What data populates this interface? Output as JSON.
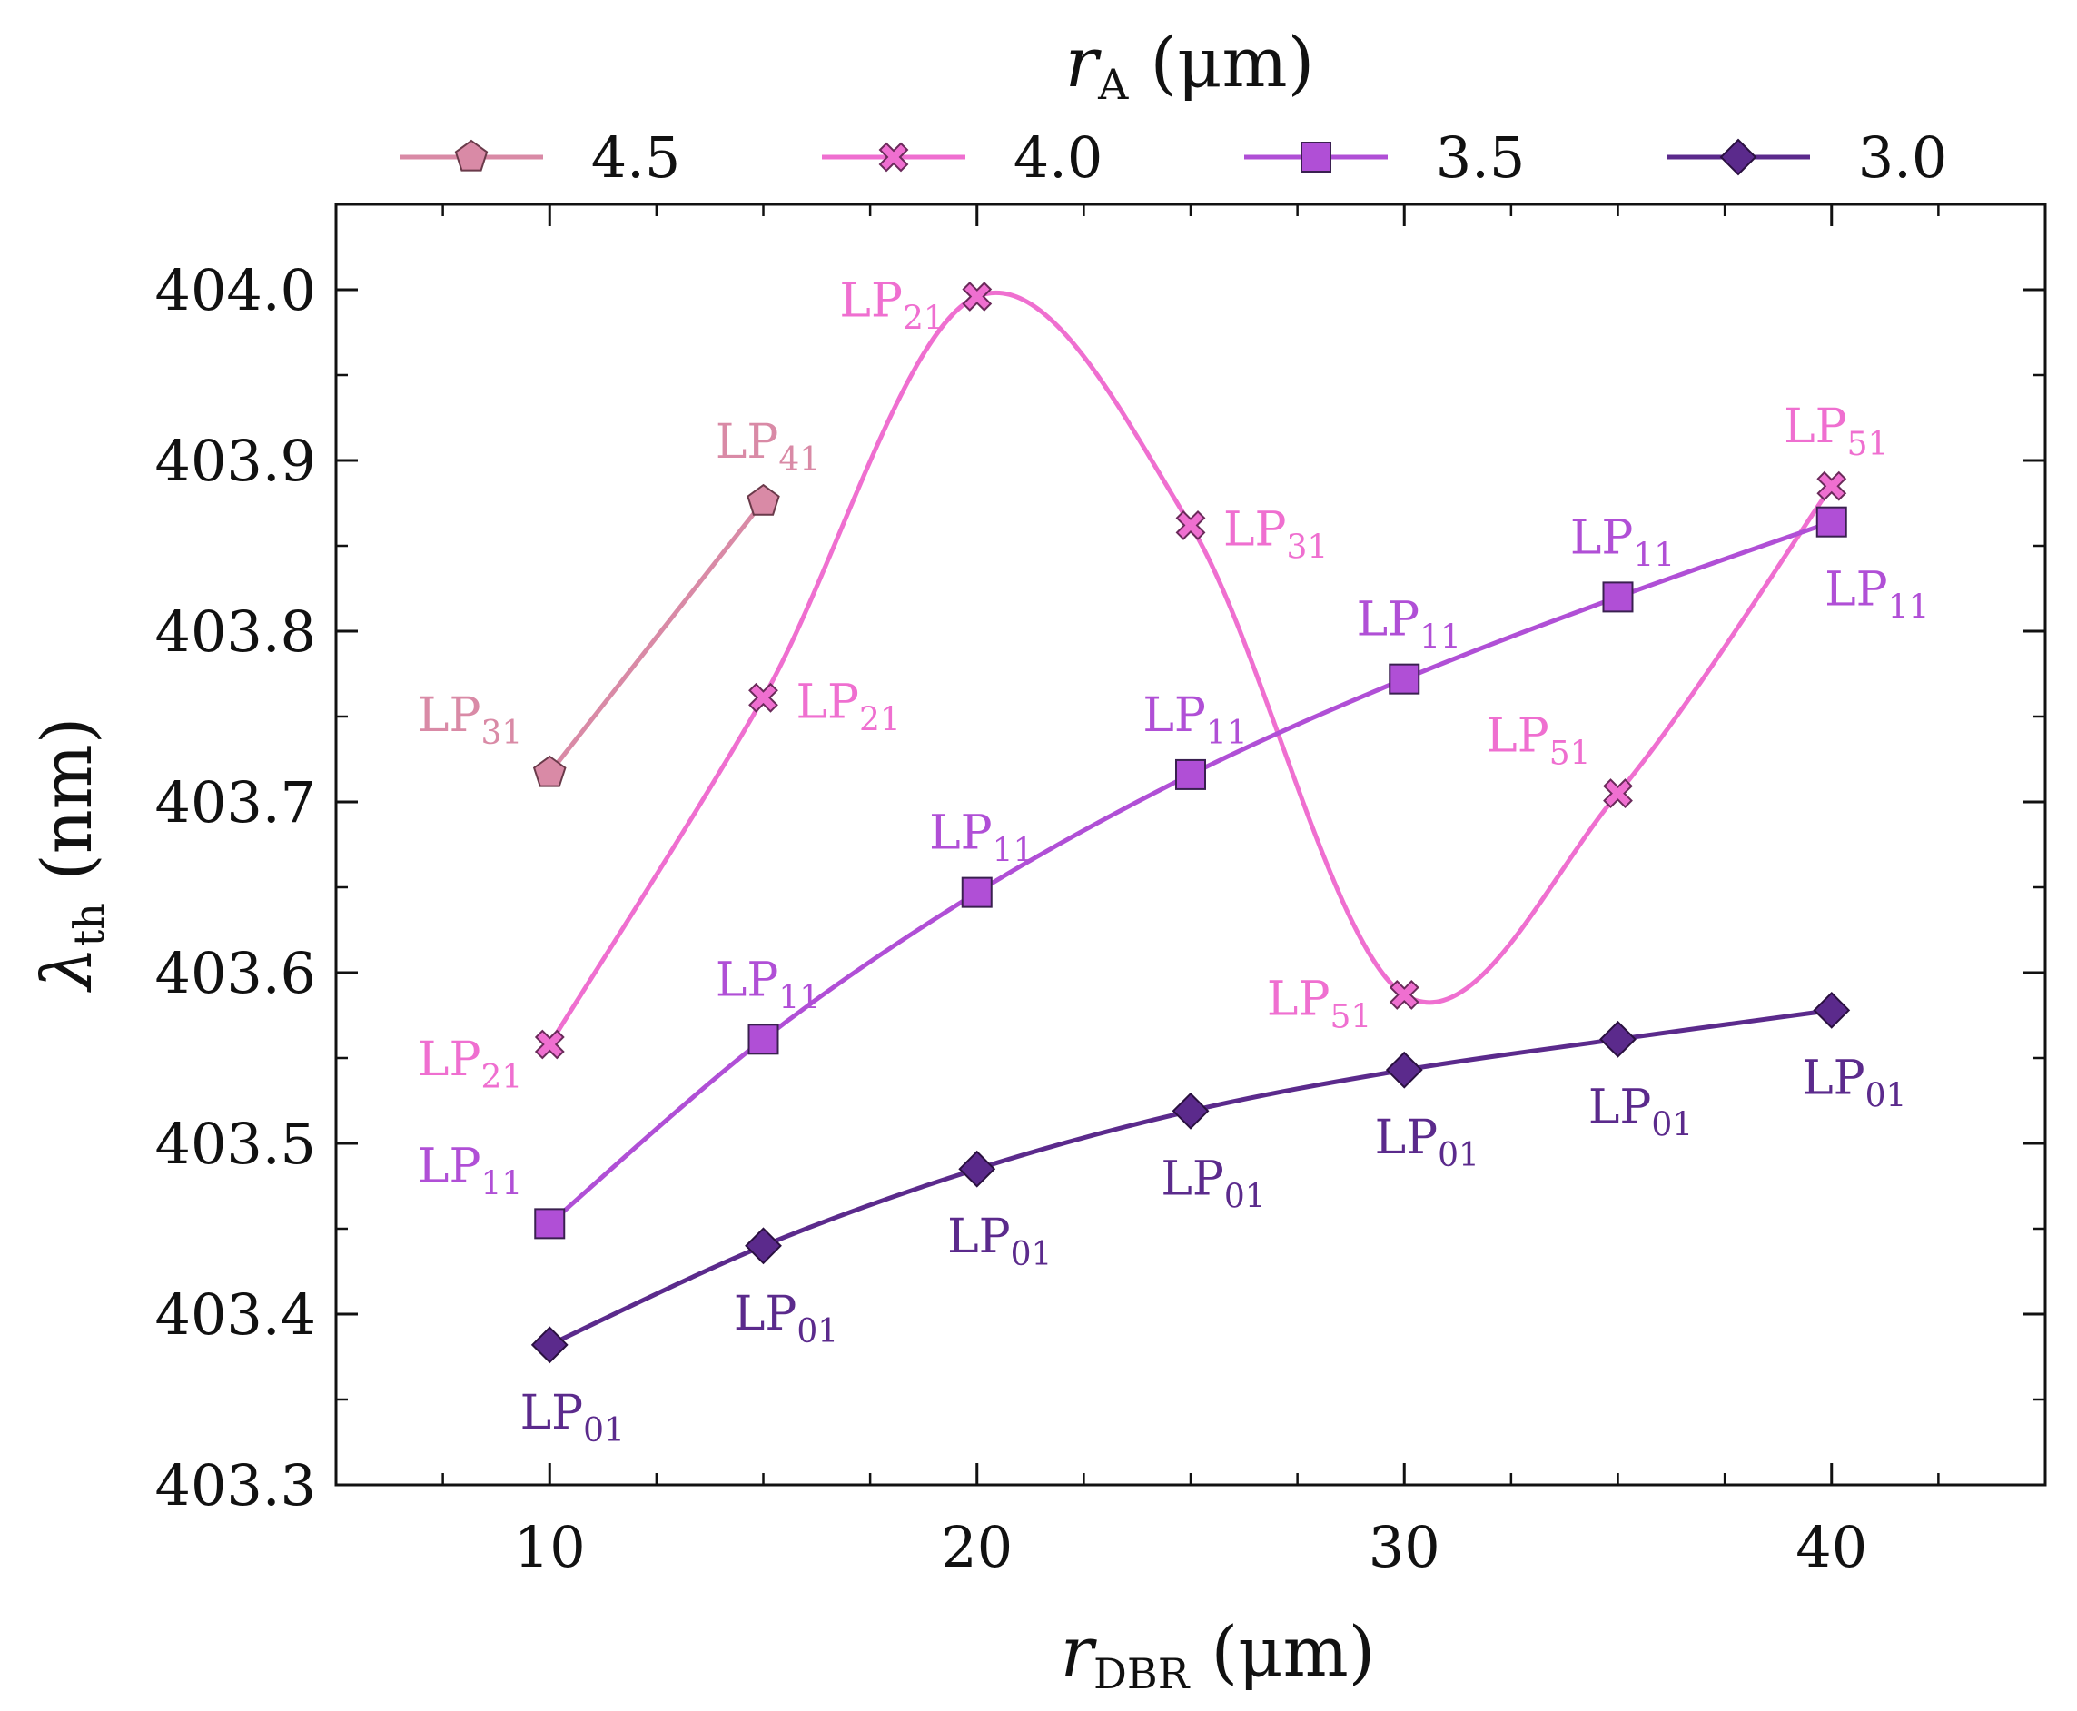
{
  "chart_data": {
    "type": "line",
    "title": "",
    "xlabel": "r_DBR (μm)",
    "xlabel_main": "r",
    "xlabel_sub": "DBR",
    "xlabel_unit": " (μm)",
    "ylabel": "λ_th (nm)",
    "ylabel_main": "λ",
    "ylabel_sub": "th",
    "ylabel_unit": " (nm)",
    "xlim": [
      5,
      45
    ],
    "ylim": [
      403.3,
      404.05
    ],
    "x_ticks": [
      10,
      20,
      30,
      40
    ],
    "x_tick_labels": [
      "10",
      "20",
      "30",
      "40"
    ],
    "y_ticks": [
      403.3,
      403.4,
      403.5,
      403.6,
      403.7,
      403.8,
      403.9,
      404.0
    ],
    "y_tick_labels": [
      "403.3",
      "403.4",
      "403.5",
      "403.6",
      "403.7",
      "403.8",
      "403.9",
      "404.0"
    ],
    "grid": false,
    "legend": {
      "title": "r_A (μm)",
      "title_main": "r",
      "title_sub": "A",
      "title_unit": " (μm)",
      "position": "top"
    },
    "series": [
      {
        "name": "4.5",
        "color": "#d98aa6",
        "marker": "pentagon",
        "x": [
          10,
          15
        ],
        "y": [
          403.717,
          403.876
        ],
        "labels": [
          "LP31",
          "LP41"
        ],
        "label_pos": [
          "upper-left",
          "above"
        ]
      },
      {
        "name": "4.0",
        "color": "#ef6fd0",
        "marker": "x-square",
        "x": [
          10,
          15,
          20,
          25,
          30,
          35,
          40
        ],
        "y": [
          403.558,
          403.761,
          403.996,
          403.862,
          403.587,
          403.705,
          403.885
        ],
        "labels": [
          "LP21",
          "LP21",
          "LP21",
          "LP31",
          "LP51",
          "LP51",
          "LP51"
        ],
        "label_pos": [
          "left-below",
          "right",
          "left",
          "right",
          "left",
          "upper-left",
          "above"
        ]
      },
      {
        "name": "3.5",
        "color": "#b04fd6",
        "marker": "square",
        "x": [
          10,
          15,
          20,
          25,
          30,
          35,
          40
        ],
        "y": [
          403.453,
          403.561,
          403.647,
          403.716,
          403.772,
          403.82,
          403.864
        ],
        "labels": [
          "LP11",
          "LP11",
          "LP11",
          "LP11",
          "LP11",
          "LP11",
          "LP11"
        ],
        "label_pos": [
          "upper-left",
          "above",
          "above",
          "above",
          "above",
          "above",
          "below-right"
        ]
      },
      {
        "name": "3.0",
        "color": "#5b2a8c",
        "marker": "diamond",
        "x": [
          10,
          15,
          20,
          25,
          30,
          35,
          40
        ],
        "y": [
          403.382,
          403.44,
          403.485,
          403.519,
          403.543,
          403.561,
          403.578
        ],
        "labels": [
          "LP01",
          "LP01",
          "LP01",
          "LP01",
          "LP01",
          "LP01",
          "LP01"
        ],
        "label_pos": [
          "below",
          "below",
          "below",
          "below",
          "below",
          "below",
          "below"
        ]
      }
    ]
  }
}
